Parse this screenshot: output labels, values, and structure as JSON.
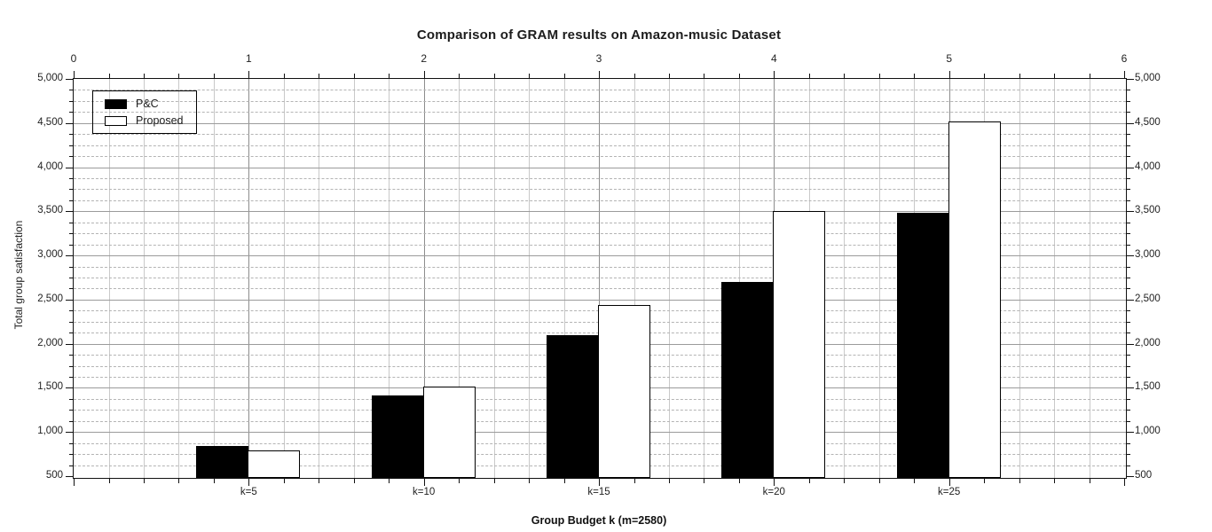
{
  "title": "Comparison of GRAM results on Amazon-music Dataset",
  "chart_data": {
    "type": "bar",
    "categories": [
      "k=5",
      "k=10",
      "k=15",
      "k=20",
      "k=25"
    ],
    "series": [
      {
        "name": "P&C",
        "color": "#000000",
        "values": [
          860,
          1430,
          2120,
          2720,
          3500
        ]
      },
      {
        "name": "Proposed",
        "color": "#ffffff",
        "values": [
          810,
          1540,
          2460,
          3520,
          4540
        ]
      }
    ],
    "xlabel": "Group Budget k (m=2580)",
    "ylabel": "Total group satisfaction",
    "ylim": [
      500,
      5000
    ],
    "y_major_step": 500,
    "y_minor_step": 125,
    "y_tick_labels": [
      "500",
      "1,000",
      "1,500",
      "2,000",
      "2,500",
      "3,000",
      "3,500",
      "4,000",
      "4,500",
      "5,000"
    ],
    "top_axis": {
      "min": 0,
      "max": 6,
      "major_step": 1,
      "minor_step": 0.2,
      "labels": [
        "0",
        "1",
        "2",
        "3",
        "4",
        "5",
        "6"
      ]
    },
    "grid": true,
    "legend_position": "top-left",
    "bar_colors": {
      "fill_series_1": "#000000",
      "fill_series_2": "#ffffff",
      "edge": "#000000"
    }
  }
}
